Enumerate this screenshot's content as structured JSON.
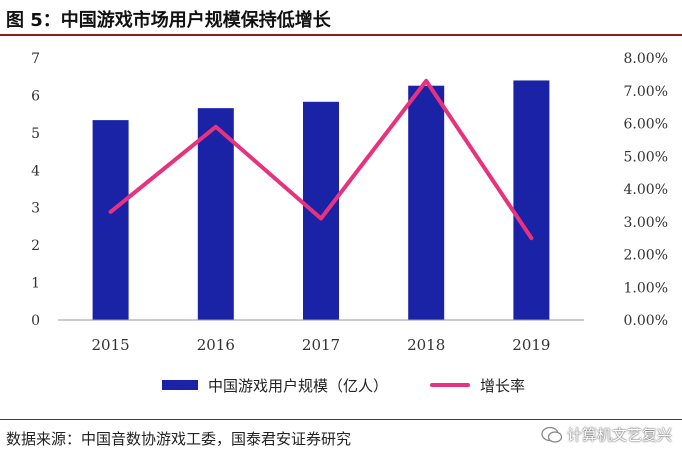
{
  "figure": {
    "title": "图 5：中国游戏市场用户规模保持低增长",
    "source": "数据来源：中国音数协游戏工委，国泰君安证券研究",
    "watermark": "计算机文艺复兴"
  },
  "chart_data": {
    "type": "bar",
    "categories": [
      "2015",
      "2016",
      "2017",
      "2018",
      "2019"
    ],
    "series": [
      {
        "name": "中国游戏用户规模（亿人）",
        "type": "bar",
        "axis": "left",
        "color": "#1a23a6",
        "values": [
          5.34,
          5.66,
          5.83,
          6.26,
          6.4
        ]
      },
      {
        "name": "增长率",
        "type": "line",
        "axis": "right",
        "color": "#e8327d",
        "values": [
          3.3,
          5.9,
          3.1,
          7.3,
          2.5
        ]
      }
    ],
    "y_left": {
      "min": 0,
      "max": 7,
      "ticks": [
        "0",
        "1",
        "2",
        "3",
        "4",
        "5",
        "6",
        "7"
      ]
    },
    "y_right": {
      "min": 0,
      "max": 8,
      "ticks": [
        "0.00%",
        "1.00%",
        "2.00%",
        "3.00%",
        "4.00%",
        "5.00%",
        "6.00%",
        "7.00%",
        "8.00%"
      ]
    },
    "grid": false,
    "legend_position": "bottom"
  }
}
